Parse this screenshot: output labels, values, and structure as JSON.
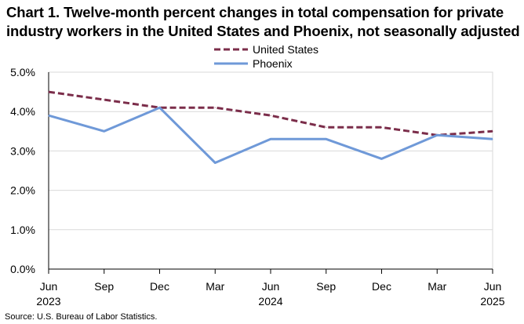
{
  "chart_data": {
    "type": "line",
    "title_lines": [
      "Chart 1. Twelve-month percent changes in total compensation for private",
      "industry workers in the United States and Phoenix, not seasonally adjusted"
    ],
    "categories": [
      "Jun",
      "Sep",
      "Dec",
      "Mar",
      "Jun",
      "Sep",
      "Dec",
      "Mar",
      "Jun"
    ],
    "category_years": [
      "2023",
      "",
      "",
      "",
      "2024",
      "",
      "",
      "",
      "2025"
    ],
    "series": [
      {
        "name": "United States",
        "color": "#7b2d4a",
        "style": "dashed",
        "values": [
          4.5,
          4.3,
          4.1,
          4.1,
          3.9,
          3.6,
          3.6,
          3.4,
          3.5
        ]
      },
      {
        "name": "Phoenix",
        "color": "#6f99d8",
        "style": "solid",
        "values": [
          3.9,
          3.5,
          4.1,
          2.7,
          3.3,
          3.3,
          2.8,
          3.4,
          3.3
        ]
      }
    ],
    "ylim": [
      0,
      5
    ],
    "yticks": [
      0,
      1,
      2,
      3,
      4,
      5
    ],
    "ytick_labels": [
      "0.0%",
      "1.0%",
      "2.0%",
      "3.0%",
      "4.0%",
      "5.0%"
    ],
    "xlabel": "",
    "ylabel": "",
    "grid": true,
    "legend_position": "top-center",
    "source": "Source: U.S. Bureau of Labor Statistics."
  }
}
